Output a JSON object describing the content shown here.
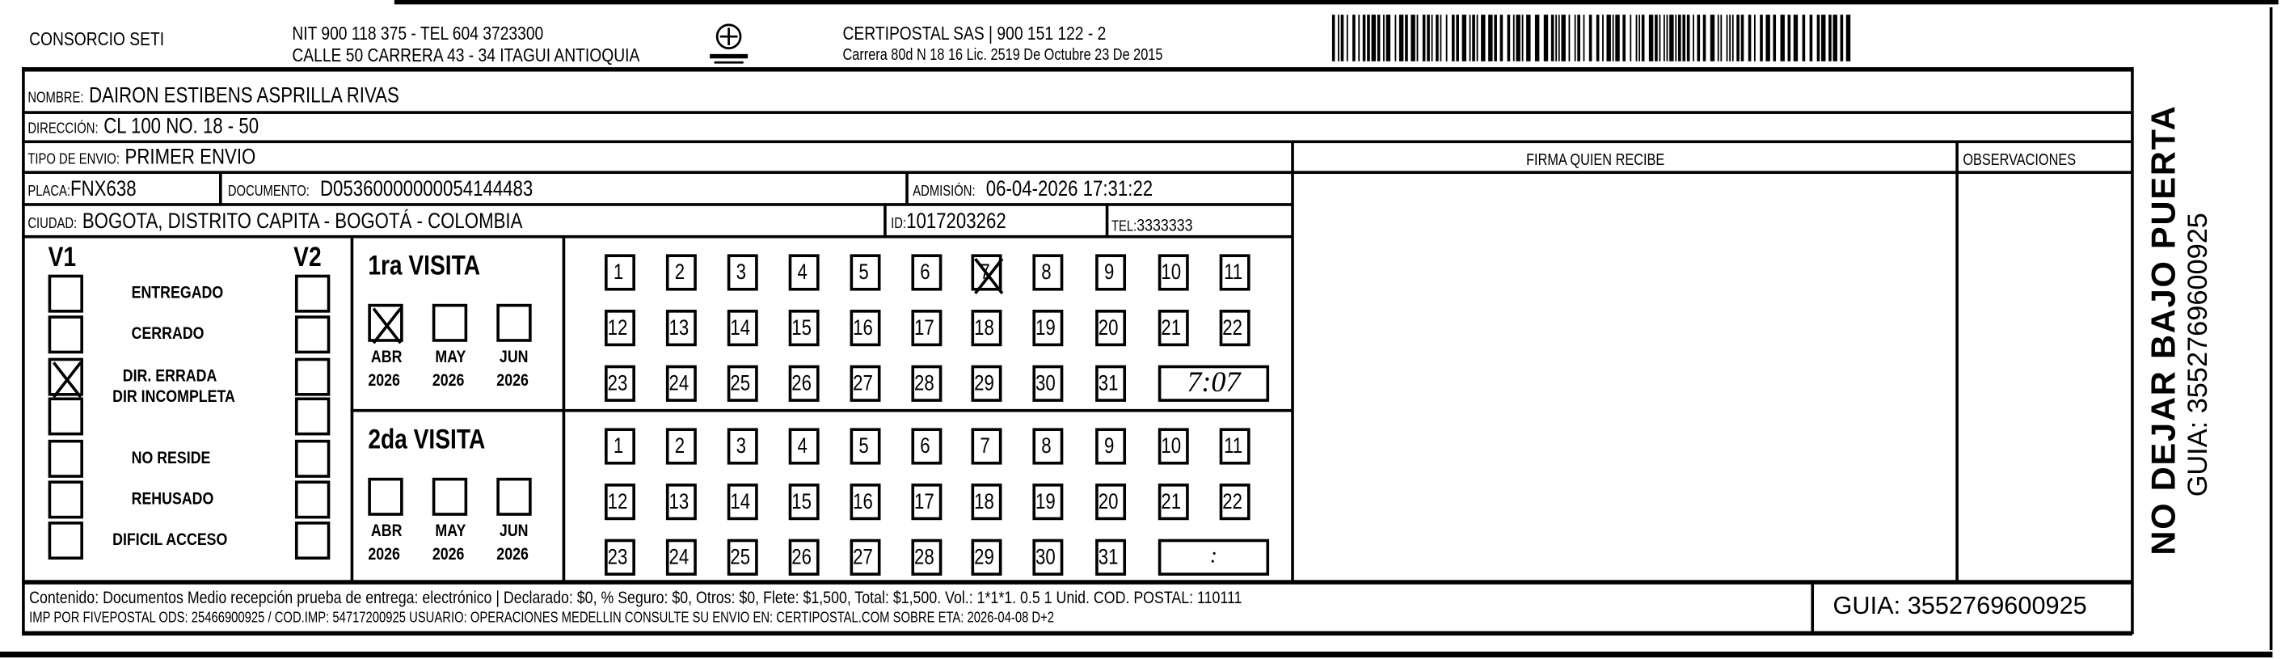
{
  "header": {
    "company": "CONSORCIO SETI",
    "nit_line": "NIT 900 118 375 - TEL 604 3723300",
    "address_line": "CALLE 50 CARRERA 43 - 34 ITAGUI ANTIOQUIA",
    "logo_text": "CERTIPOSTAL",
    "carrier_line": "CERTIPOSTAL SAS | 900 151 122 - 2",
    "license_line": "Carrera 80d N 18 16  Lic. 2519 De Octubre 23 De 2015"
  },
  "recipient": {
    "nombre_label": "NOMBRE:",
    "nombre": "DAIRON ESTIBENS ASPRILLA RIVAS",
    "direccion_label": "DIRECCIÓN:",
    "direccion": "CL 100 NO. 18 - 50",
    "tipo_label": "TIPO DE ENVIO:",
    "tipo": "PRIMER ENVIO",
    "placa_label": "PLACA:",
    "placa": "FNX638",
    "documento_label": "DOCUMENTO:",
    "documento": "D05360000000054144483",
    "admision_label": "ADMISIÓN:",
    "admision": "06-04-2026 17:31:22",
    "ciudad_label": "CIUDAD:",
    "ciudad": "BOGOTA, DISTRITO CAPITA - BOGOTÁ - COLOMBIA",
    "id_label": "ID:",
    "id": "1017203262",
    "tel_label": "TEL:",
    "tel": "3333333"
  },
  "status": {
    "v1_label": "V1",
    "v2_label": "V2",
    "items": [
      {
        "label": "ENTREGADO",
        "v1": false,
        "v2": false
      },
      {
        "label": "CERRADO",
        "v1": false,
        "v2": false
      },
      {
        "label": "DIR. ERRADA",
        "v1": true,
        "v2": false
      },
      {
        "label": "DIR INCOMPLETA",
        "v1": false,
        "v2": false
      },
      {
        "label": "NO RESIDE",
        "v1": false,
        "v2": false
      },
      {
        "label": "REHUSADO",
        "v1": false,
        "v2": false
      },
      {
        "label": "DIFICIL ACCESO",
        "v1": false,
        "v2": false
      }
    ]
  },
  "visits": [
    {
      "title": "1ra VISITA",
      "months": [
        {
          "month": "ABR",
          "year": "2026",
          "checked": true
        },
        {
          "month": "MAY",
          "year": "2026",
          "checked": false
        },
        {
          "month": "JUN",
          "year": "2026",
          "checked": false
        }
      ],
      "checked_day": 7,
      "time": "7:07"
    },
    {
      "title": "2da VISITA",
      "months": [
        {
          "month": "ABR",
          "year": "2026",
          "checked": false
        },
        {
          "month": "MAY",
          "year": "2026",
          "checked": false
        },
        {
          "month": "JUN",
          "year": "2026",
          "checked": false
        }
      ],
      "checked_day": null,
      "time": ":"
    }
  ],
  "signature": {
    "firma_label": "FIRMA QUIEN RECIBE",
    "observaciones_label": "OBSERVACIONES"
  },
  "side": {
    "warning": "NO DEJAR BAJO PUERTA",
    "guia": "GUIA: 3552769600925"
  },
  "footer": {
    "contenido": "Contenido: Documentos Medio recepción prueba de entrega: electrónico | Declarado: $0, % Seguro: $0, Otros: $0, Flete: $1,500, Total: $1,500. Vol.: 1*1*1. 0.5  1 Unid. COD. POSTAL: 110111",
    "imp": "IMP POR FIVEPOSTAL ODS: 25466900925 / COD.IMP: 54717200925 USUARIO: OPERACIONES MEDELLIN CONSULTE SU ENVIO EN: CERTIPOSTAL.COM SOBRE ETA: 2026-04-08 D+2",
    "guia": "GUIA: 3552769600925"
  }
}
